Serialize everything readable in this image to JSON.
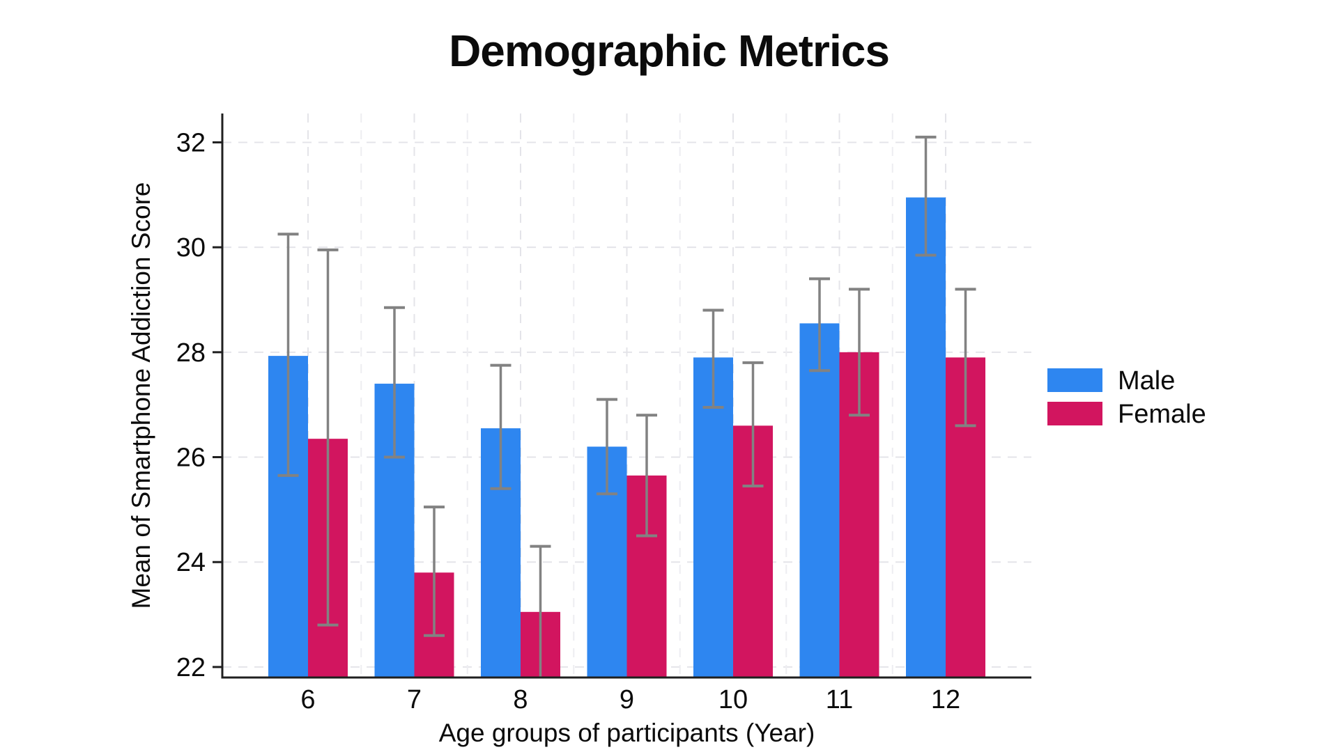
{
  "page": {
    "background": "#ffffff"
  },
  "chart_data": {
    "type": "bar",
    "title": "Demographic Metrics",
    "xlabel": "Age groups of participants (Year)",
    "ylabel": "Mean of Smartphone Addiction Score",
    "categories": [
      "6",
      "7",
      "8",
      "9",
      "10",
      "11",
      "12"
    ],
    "series": [
      {
        "name": "Male",
        "color": "#2E86F0",
        "values": [
          27.93,
          27.4,
          26.55,
          26.2,
          27.9,
          28.55,
          30.95
        ],
        "error_low": [
          25.65,
          26.0,
          25.4,
          25.3,
          26.95,
          27.65,
          29.85
        ],
        "error_high": [
          30.25,
          28.85,
          27.75,
          27.1,
          28.8,
          29.4,
          32.1
        ]
      },
      {
        "name": "Female",
        "color": "#D2155F",
        "values": [
          26.35,
          23.8,
          23.05,
          25.65,
          26.6,
          28.0,
          27.9
        ],
        "error_low": [
          22.8,
          22.6,
          21.8,
          24.5,
          25.45,
          26.8,
          26.6
        ],
        "error_high": [
          29.95,
          25.05,
          24.3,
          26.8,
          27.8,
          29.2,
          29.2
        ]
      }
    ],
    "ylim": [
      21.8,
      32.55
    ],
    "yticks": [
      22,
      24,
      26,
      28,
      30,
      32
    ],
    "grid": {
      "horizontal": "dashed",
      "vertical": "dashed"
    },
    "legend_position": "right",
    "error_bar_color": "#828282",
    "axis_color": "#1f1f1f",
    "grid_color": "#e4e4e9",
    "grid_minor_color": "#ededf1",
    "text_color": "#0b0b0b"
  }
}
